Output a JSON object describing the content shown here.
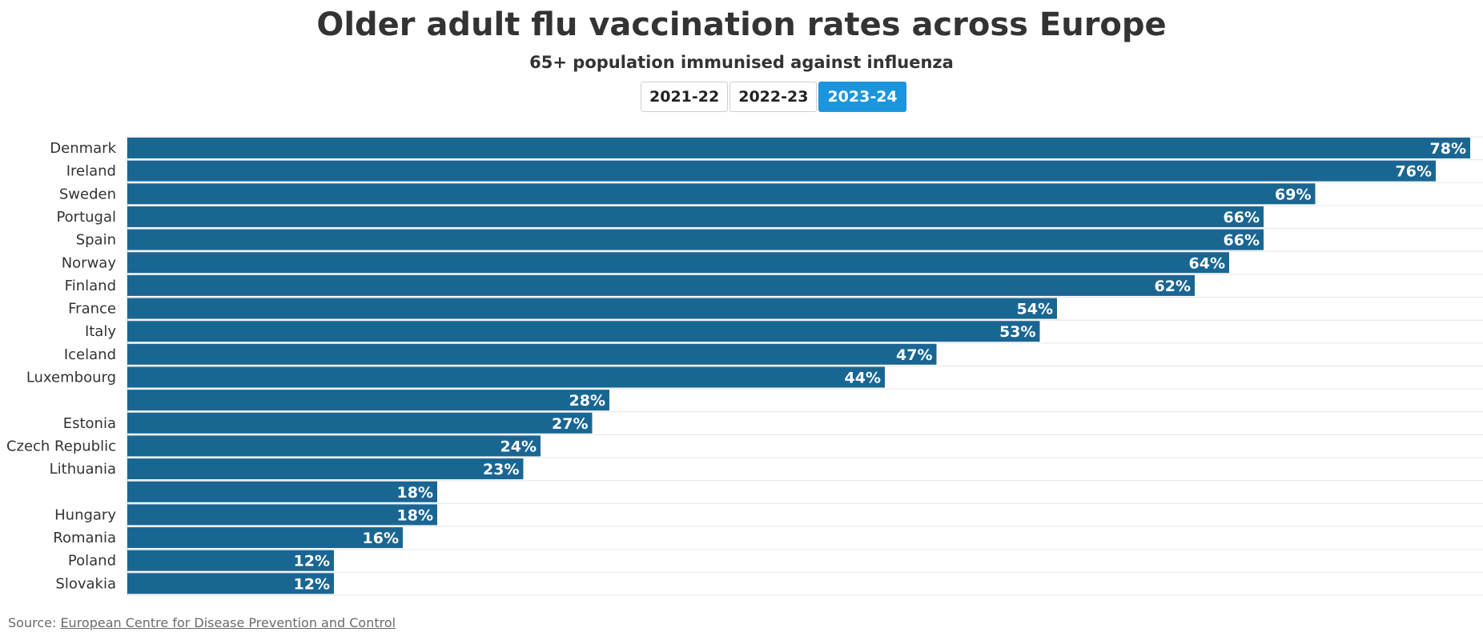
{
  "header": {
    "title": "Older adult flu vaccination rates across Europe",
    "subtitle": "65+ population immunised against influenza"
  },
  "tabs": [
    {
      "label": "2021-22",
      "active": false
    },
    {
      "label": "2022-23",
      "active": false
    },
    {
      "label": "2023-24",
      "active": true
    }
  ],
  "colors": {
    "bar": "#1a6693",
    "active_tab": "#1b95de",
    "gridline": "#e6e6e6"
  },
  "footer": {
    "source_prefix": "Source:",
    "source_link": "European Centre for Disease Prevention and Control"
  },
  "chart_data": {
    "type": "bar",
    "orientation": "horizontal",
    "categories": [
      "Denmark",
      "Ireland",
      "Sweden",
      "Portugal",
      "Spain",
      "Norway",
      "Finland",
      "France",
      "Italy",
      "Iceland",
      "Luxembourg",
      "",
      "Estonia",
      "Czech Republic",
      "Lithuania",
      "",
      "Hungary",
      "Romania",
      "Poland",
      "Slovakia"
    ],
    "values": [
      78,
      76,
      69,
      66,
      66,
      64,
      62,
      54,
      53,
      47,
      44,
      28,
      27,
      24,
      23,
      18,
      18,
      16,
      12,
      12
    ],
    "value_suffix": "%",
    "xlim": [
      0,
      78
    ],
    "grid": true,
    "legend": "none"
  }
}
